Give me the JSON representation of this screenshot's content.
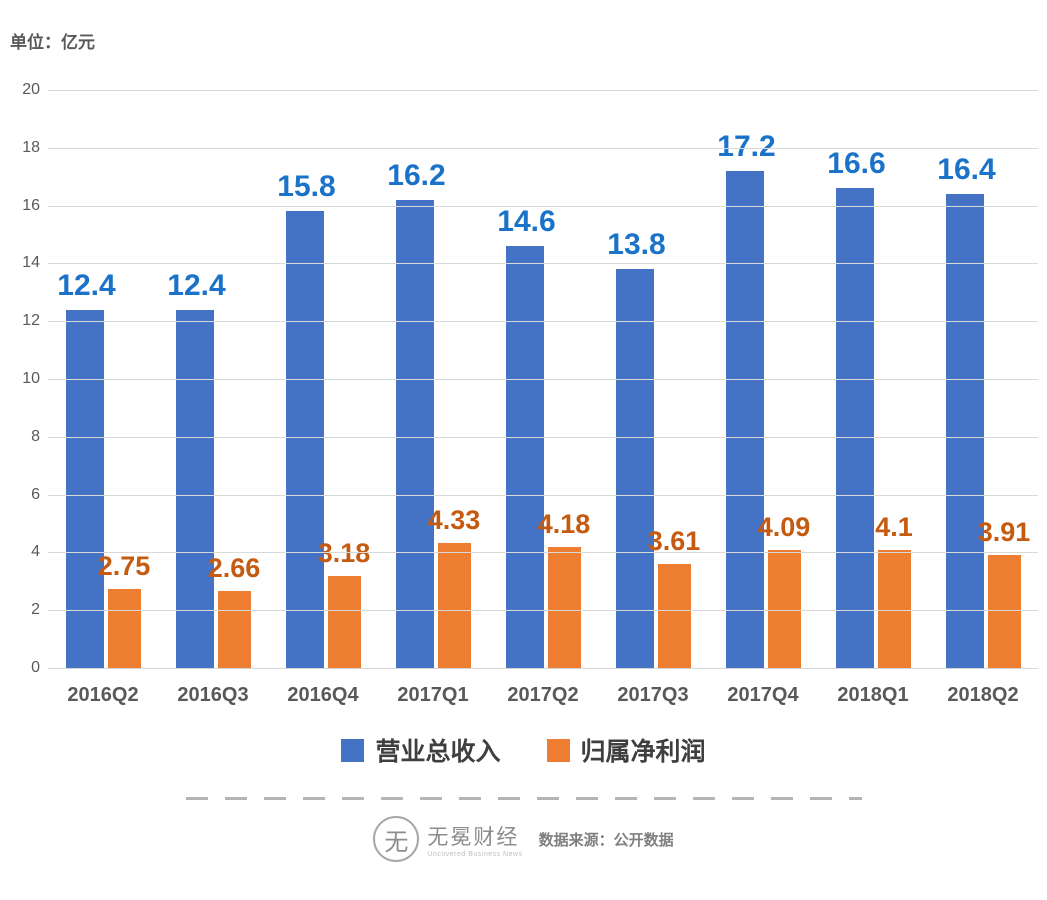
{
  "unit_label": "单位：亿元",
  "chart_data": {
    "type": "bar",
    "categories": [
      "2016Q2",
      "2016Q3",
      "2016Q4",
      "2017Q1",
      "2017Q2",
      "2017Q3",
      "2017Q4",
      "2018Q1",
      "2018Q2"
    ],
    "series": [
      {
        "name": "营业总收入",
        "color": "#4472C4",
        "label_color": "#1A73C8",
        "values": [
          12.4,
          12.4,
          15.8,
          16.2,
          14.6,
          13.8,
          17.2,
          16.6,
          16.4
        ]
      },
      {
        "name": "归属净利润",
        "color": "#ED7D31",
        "label_color": "#C55A11",
        "values": [
          2.75,
          2.66,
          3.18,
          4.33,
          4.18,
          3.61,
          4.09,
          4.1,
          3.91
        ]
      }
    ],
    "title": "",
    "xlabel": "",
    "ylabel": "单位：亿元",
    "ylim": [
      0,
      20
    ],
    "ytick_step": 2,
    "grid": true,
    "legend_position": "bottom"
  },
  "footer": {
    "logo_text": "无冕财经",
    "logo_subtext": "Uncovered Business News",
    "logo_glyph": "无",
    "source_label": "数据来源：公开数据"
  }
}
